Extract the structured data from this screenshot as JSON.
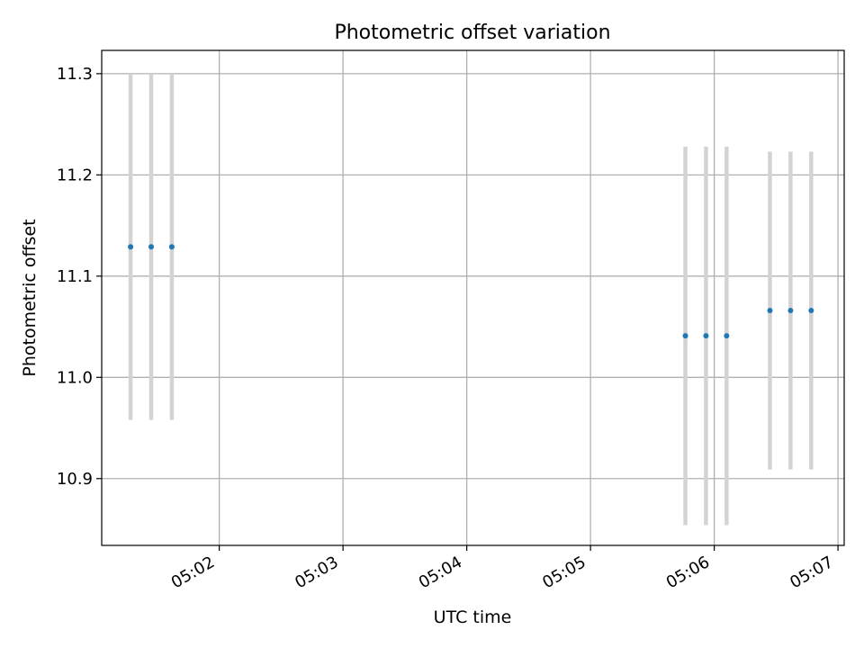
{
  "chart_data": {
    "type": "scatter",
    "title": "Photometric offset variation",
    "xlabel": "UTC time",
    "ylabel": "Photometric offset",
    "x_axis_type": "time",
    "xlim": [
      "05:01:03",
      "05:07:03"
    ],
    "ylim": [
      10.834,
      11.323
    ],
    "x_ticks": [
      "05:02",
      "05:03",
      "05:04",
      "05:05",
      "05:06",
      "05:07"
    ],
    "y_ticks": [
      "10.9",
      "11.0",
      "11.1",
      "11.2",
      "11.3"
    ],
    "grid": true,
    "legend": "none",
    "colors": {
      "point": "#1f77b4",
      "errorbar": "#d3d3d3",
      "grid": "#b0b0b0"
    },
    "series": [
      {
        "points": [
          {
            "x": "05:01:17",
            "y": 11.129,
            "yerr": 0.171
          },
          {
            "x": "05:01:27",
            "y": 11.129,
            "yerr": 0.171
          },
          {
            "x": "05:01:37",
            "y": 11.129,
            "yerr": 0.171
          },
          {
            "x": "05:05:46",
            "y": 11.041,
            "yerr": 0.187
          },
          {
            "x": "05:05:56",
            "y": 11.041,
            "yerr": 0.187
          },
          {
            "x": "05:06:06",
            "y": 11.041,
            "yerr": 0.187
          },
          {
            "x": "05:06:27",
            "y": 11.066,
            "yerr": 0.157
          },
          {
            "x": "05:06:37",
            "y": 11.066,
            "yerr": 0.157
          },
          {
            "x": "05:06:47",
            "y": 11.066,
            "yerr": 0.157
          }
        ]
      }
    ]
  }
}
